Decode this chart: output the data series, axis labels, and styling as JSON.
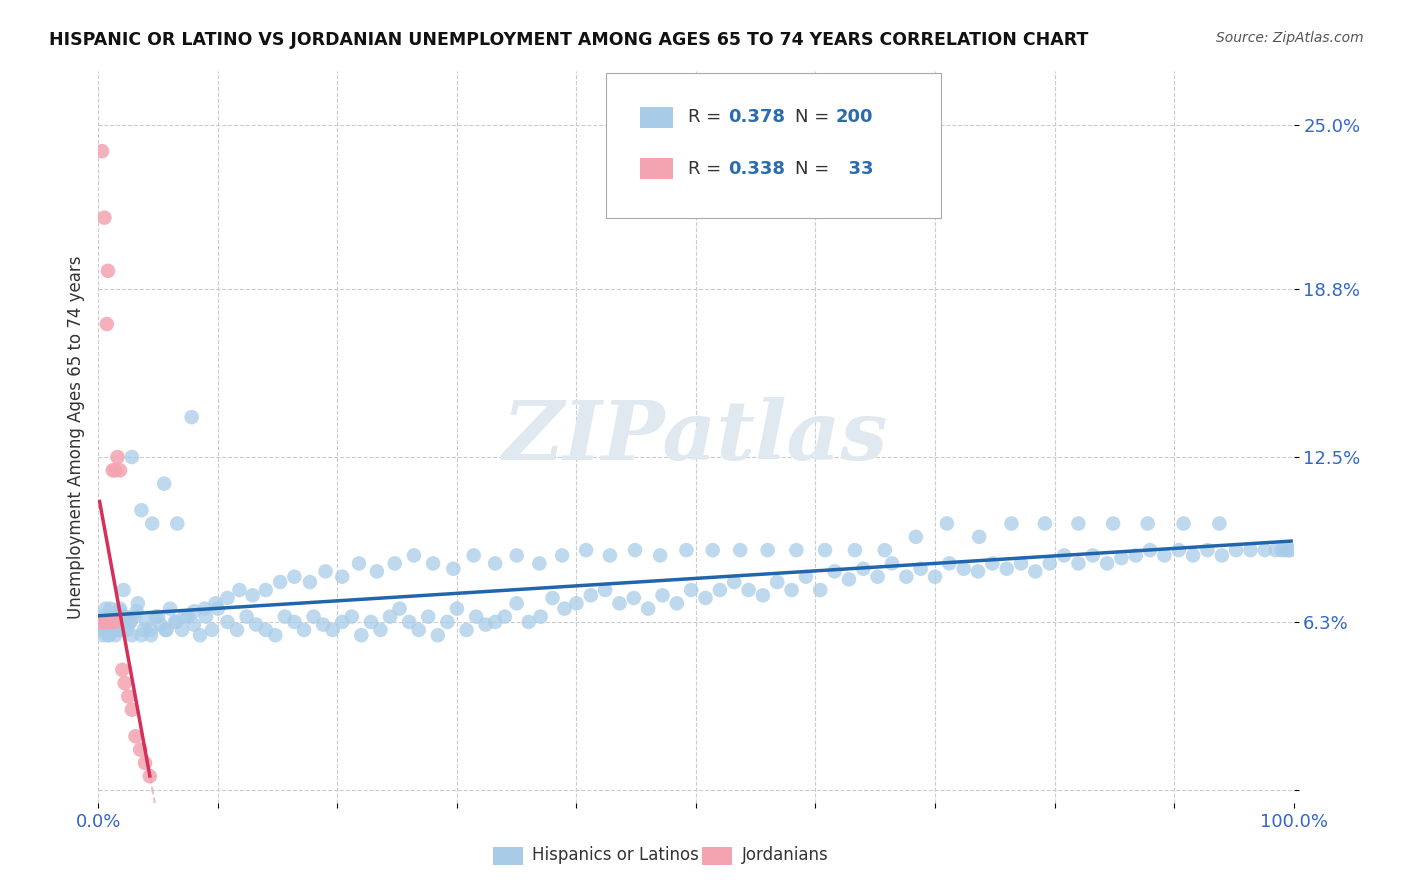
{
  "title": "HISPANIC OR LATINO VS JORDANIAN UNEMPLOYMENT AMONG AGES 65 TO 74 YEARS CORRELATION CHART",
  "source": "Source: ZipAtlas.com",
  "ylabel": "Unemployment Among Ages 65 to 74 years",
  "xlim": [
    0,
    1.0
  ],
  "ylim": [
    -0.005,
    0.27
  ],
  "xticks": [
    0.0,
    0.1,
    0.2,
    0.3,
    0.4,
    0.5,
    0.6,
    0.7,
    0.8,
    0.9,
    1.0
  ],
  "xticklabels": [
    "0.0%",
    "",
    "",
    "",
    "",
    "",
    "",
    "",
    "",
    "",
    "100.0%"
  ],
  "ytick_positions": [
    0.0,
    0.063,
    0.125,
    0.188,
    0.25
  ],
  "ytick_labels": [
    "",
    "6.3%",
    "12.5%",
    "18.8%",
    "25.0%"
  ],
  "blue_color": "#a8cce8",
  "blue_line_color": "#2166ac",
  "pink_color": "#f4a4b0",
  "pink_line_color": "#d6305a",
  "pink_line_dashed_color": "#f0a0b8",
  "R_blue": 0.378,
  "N_blue": 200,
  "R_pink": 0.338,
  "N_pink": 33,
  "watermark": "ZIPatlas",
  "legend_blue_label": "Hispanics or Latinos",
  "legend_pink_label": "Jordanians",
  "blue_scatter_x": [
    0.001,
    0.002,
    0.003,
    0.004,
    0.005,
    0.006,
    0.007,
    0.008,
    0.009,
    0.01,
    0.011,
    0.012,
    0.013,
    0.014,
    0.015,
    0.016,
    0.017,
    0.018,
    0.019,
    0.02,
    0.022,
    0.024,
    0.026,
    0.028,
    0.03,
    0.033,
    0.036,
    0.04,
    0.044,
    0.048,
    0.052,
    0.056,
    0.06,
    0.065,
    0.07,
    0.075,
    0.08,
    0.085,
    0.09,
    0.095,
    0.1,
    0.108,
    0.116,
    0.124,
    0.132,
    0.14,
    0.148,
    0.156,
    0.164,
    0.172,
    0.18,
    0.188,
    0.196,
    0.204,
    0.212,
    0.22,
    0.228,
    0.236,
    0.244,
    0.252,
    0.26,
    0.268,
    0.276,
    0.284,
    0.292,
    0.3,
    0.308,
    0.316,
    0.324,
    0.332,
    0.34,
    0.35,
    0.36,
    0.37,
    0.38,
    0.39,
    0.4,
    0.412,
    0.424,
    0.436,
    0.448,
    0.46,
    0.472,
    0.484,
    0.496,
    0.508,
    0.52,
    0.532,
    0.544,
    0.556,
    0.568,
    0.58,
    0.592,
    0.604,
    0.616,
    0.628,
    0.64,
    0.652,
    0.664,
    0.676,
    0.688,
    0.7,
    0.712,
    0.724,
    0.736,
    0.748,
    0.76,
    0.772,
    0.784,
    0.796,
    0.808,
    0.82,
    0.832,
    0.844,
    0.856,
    0.868,
    0.88,
    0.892,
    0.904,
    0.916,
    0.928,
    0.94,
    0.952,
    0.964,
    0.976,
    0.985,
    0.99,
    0.993,
    0.996,
    0.998,
    0.003,
    0.005,
    0.008,
    0.011,
    0.014,
    0.018,
    0.022,
    0.027,
    0.032,
    0.038,
    0.044,
    0.05,
    0.057,
    0.064,
    0.072,
    0.08,
    0.089,
    0.098,
    0.108,
    0.118,
    0.129,
    0.14,
    0.152,
    0.164,
    0.177,
    0.19,
    0.204,
    0.218,
    0.233,
    0.248,
    0.264,
    0.28,
    0.297,
    0.314,
    0.332,
    0.35,
    0.369,
    0.388,
    0.408,
    0.428,
    0.449,
    0.47,
    0.492,
    0.514,
    0.537,
    0.56,
    0.584,
    0.608,
    0.633,
    0.658,
    0.684,
    0.71,
    0.737,
    0.764,
    0.792,
    0.82,
    0.849,
    0.878,
    0.908,
    0.938,
    0.006,
    0.01,
    0.015,
    0.021,
    0.028,
    0.036,
    0.045,
    0.055,
    0.066,
    0.078
  ],
  "blue_scatter_y": [
    0.063,
    0.065,
    0.06,
    0.058,
    0.062,
    0.068,
    0.06,
    0.063,
    0.058,
    0.065,
    0.062,
    0.06,
    0.065,
    0.058,
    0.063,
    0.06,
    0.062,
    0.067,
    0.06,
    0.063,
    0.065,
    0.06,
    0.063,
    0.058,
    0.065,
    0.07,
    0.058,
    0.063,
    0.06,
    0.065,
    0.062,
    0.06,
    0.068,
    0.063,
    0.06,
    0.065,
    0.062,
    0.058,
    0.065,
    0.06,
    0.068,
    0.063,
    0.06,
    0.065,
    0.062,
    0.06,
    0.058,
    0.065,
    0.063,
    0.06,
    0.065,
    0.062,
    0.06,
    0.063,
    0.065,
    0.058,
    0.063,
    0.06,
    0.065,
    0.068,
    0.063,
    0.06,
    0.065,
    0.058,
    0.063,
    0.068,
    0.06,
    0.065,
    0.062,
    0.063,
    0.065,
    0.07,
    0.063,
    0.065,
    0.072,
    0.068,
    0.07,
    0.073,
    0.075,
    0.07,
    0.072,
    0.068,
    0.073,
    0.07,
    0.075,
    0.072,
    0.075,
    0.078,
    0.075,
    0.073,
    0.078,
    0.075,
    0.08,
    0.075,
    0.082,
    0.079,
    0.083,
    0.08,
    0.085,
    0.08,
    0.083,
    0.08,
    0.085,
    0.083,
    0.082,
    0.085,
    0.083,
    0.085,
    0.082,
    0.085,
    0.088,
    0.085,
    0.088,
    0.085,
    0.087,
    0.088,
    0.09,
    0.088,
    0.09,
    0.088,
    0.09,
    0.088,
    0.09,
    0.09,
    0.09,
    0.09,
    0.09,
    0.09,
    0.09,
    0.09,
    0.063,
    0.06,
    0.058,
    0.062,
    0.06,
    0.068,
    0.065,
    0.063,
    0.067,
    0.06,
    0.058,
    0.065,
    0.06,
    0.063,
    0.065,
    0.067,
    0.068,
    0.07,
    0.072,
    0.075,
    0.073,
    0.075,
    0.078,
    0.08,
    0.078,
    0.082,
    0.08,
    0.085,
    0.082,
    0.085,
    0.088,
    0.085,
    0.083,
    0.088,
    0.085,
    0.088,
    0.085,
    0.088,
    0.09,
    0.088,
    0.09,
    0.088,
    0.09,
    0.09,
    0.09,
    0.09,
    0.09,
    0.09,
    0.09,
    0.09,
    0.095,
    0.1,
    0.095,
    0.1,
    0.1,
    0.1,
    0.1,
    0.1,
    0.1,
    0.1,
    0.063,
    0.068,
    0.065,
    0.075,
    0.125,
    0.105,
    0.1,
    0.115,
    0.1,
    0.14
  ],
  "pink_scatter_x": [
    0.001,
    0.002,
    0.003,
    0.004,
    0.005,
    0.006,
    0.007,
    0.008,
    0.009,
    0.01,
    0.011,
    0.012,
    0.014,
    0.016,
    0.018,
    0.02,
    0.022,
    0.025,
    0.028,
    0.031,
    0.035,
    0.039,
    0.043,
    0.003,
    0.005,
    0.007,
    0.008,
    0.01,
    0.012,
    0.014,
    0.002,
    0.003,
    0.004
  ],
  "pink_scatter_y": [
    0.063,
    0.063,
    0.063,
    0.063,
    0.063,
    0.063,
    0.063,
    0.063,
    0.063,
    0.063,
    0.063,
    0.12,
    0.12,
    0.125,
    0.12,
    0.045,
    0.04,
    0.035,
    0.03,
    0.02,
    0.015,
    0.01,
    0.005,
    0.24,
    0.215,
    0.175,
    0.195,
    0.063,
    0.063,
    0.063,
    0.063,
    0.063,
    0.063
  ]
}
